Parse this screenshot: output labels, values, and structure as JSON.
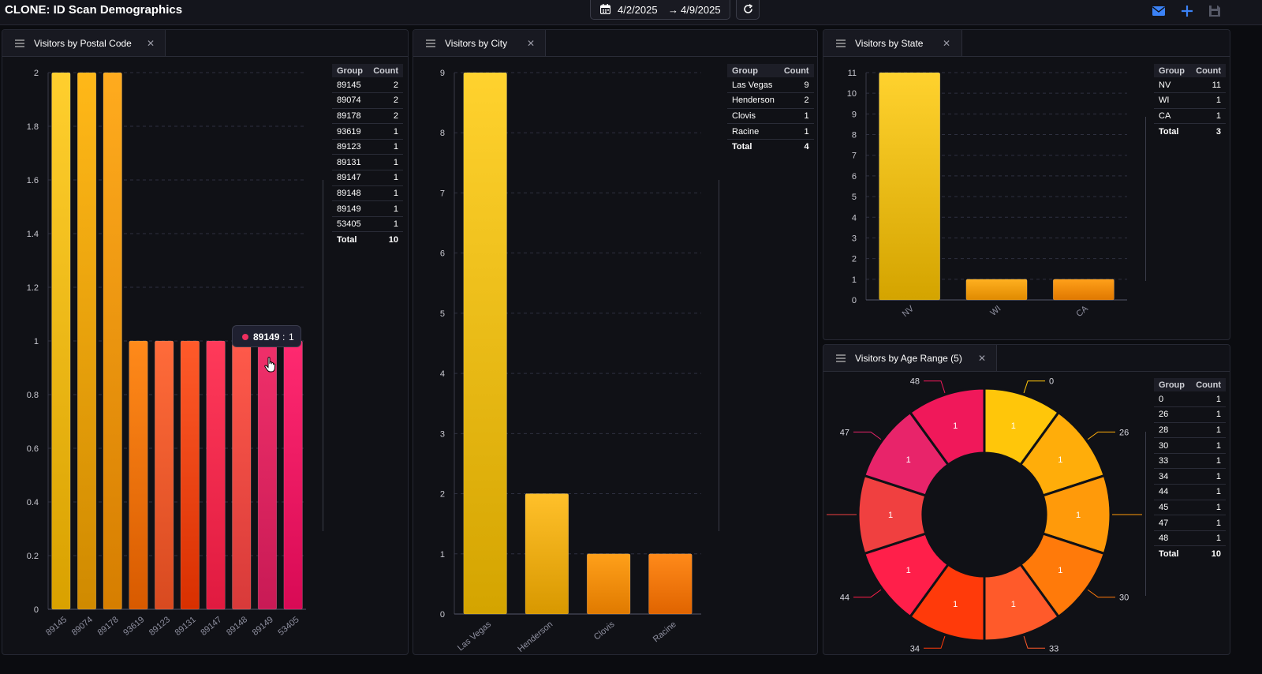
{
  "app": {
    "title": "CLONE: ID Scan Demographics",
    "date_start": "4/2/2025",
    "date_arrow": "→",
    "date_end": "4/9/2025",
    "tool_icons": [
      "mail-icon",
      "plus-icon",
      "save-icon"
    ]
  },
  "table_headers": {
    "group": "Group",
    "count": "Count"
  },
  "panels": {
    "postal": {
      "title": "Visitors by Postal Code",
      "tooltip": {
        "label": "89149",
        "sep": ":",
        "value": "1"
      },
      "rows": [
        {
          "group": "89145",
          "count": "2"
        },
        {
          "group": "89074",
          "count": "2"
        },
        {
          "group": "89178",
          "count": "2"
        },
        {
          "group": "93619",
          "count": "1"
        },
        {
          "group": "89123",
          "count": "1"
        },
        {
          "group": "89131",
          "count": "1"
        },
        {
          "group": "89147",
          "count": "1"
        },
        {
          "group": "89148",
          "count": "1"
        },
        {
          "group": "89149",
          "count": "1"
        },
        {
          "group": "53405",
          "count": "1"
        }
      ],
      "total": {
        "group": "Total",
        "count": "10"
      }
    },
    "city": {
      "title": "Visitors by City",
      "rows": [
        {
          "group": "Las Vegas",
          "count": "9"
        },
        {
          "group": "Henderson",
          "count": "2"
        },
        {
          "group": "Clovis",
          "count": "1"
        },
        {
          "group": "Racine",
          "count": "1"
        }
      ],
      "total": {
        "group": "Total",
        "count": "4"
      }
    },
    "state": {
      "title": "Visitors by State",
      "rows": [
        {
          "group": "NV",
          "count": "11"
        },
        {
          "group": "WI",
          "count": "1"
        },
        {
          "group": "CA",
          "count": "1"
        }
      ],
      "total": {
        "group": "Total",
        "count": "3"
      }
    },
    "age": {
      "title": "Visitors by Age Range (5)",
      "rows": [
        {
          "group": "0",
          "count": "1"
        },
        {
          "group": "26",
          "count": "1"
        },
        {
          "group": "28",
          "count": "1"
        },
        {
          "group": "30",
          "count": "1"
        },
        {
          "group": "33",
          "count": "1"
        },
        {
          "group": "34",
          "count": "1"
        },
        {
          "group": "44",
          "count": "1"
        },
        {
          "group": "45",
          "count": "1"
        },
        {
          "group": "47",
          "count": "1"
        },
        {
          "group": "48",
          "count": "1"
        }
      ],
      "total": {
        "group": "Total",
        "count": "10"
      }
    }
  },
  "chart_data": [
    {
      "id": "postal",
      "type": "bar",
      "categories": [
        "89145",
        "89074",
        "89178",
        "93619",
        "89123",
        "89131",
        "89147",
        "89148",
        "89149",
        "53405"
      ],
      "values": [
        2,
        2,
        2,
        1,
        1,
        1,
        1,
        1,
        1,
        1
      ],
      "yticks": [
        "0",
        "0.2",
        "0.4",
        "0.6",
        "0.8",
        "1",
        "1.2",
        "1.4",
        "1.6",
        "1.8",
        "2"
      ],
      "ylim": [
        0,
        2
      ],
      "grid": true,
      "colors": [
        [
          "#ffcf2e",
          "#d9a100"
        ],
        [
          "#ffb818",
          "#d08a00"
        ],
        [
          "#ffab1e",
          "#d67e00"
        ],
        [
          "#ff8a1a",
          "#d85a00"
        ],
        [
          "#ff6b3a",
          "#d84a20"
        ],
        [
          "#ff5a2a",
          "#d83000"
        ],
        [
          "#ff3a5a",
          "#e01a40"
        ],
        [
          "#ff5a4a",
          "#d83a3a"
        ],
        [
          "#f0306a",
          "#c81a55"
        ],
        [
          "#ff2a70",
          "#d80a55"
        ]
      ]
    },
    {
      "id": "city",
      "type": "bar",
      "categories": [
        "Las Vegas",
        "Henderson",
        "Clovis",
        "Racine"
      ],
      "values": [
        9,
        2,
        1,
        1
      ],
      "yticks": [
        "0",
        "1",
        "2",
        "3",
        "4",
        "5",
        "6",
        "7",
        "8",
        "9"
      ],
      "ylim": [
        0,
        9
      ],
      "grid": true,
      "colors": [
        [
          "#ffd22e",
          "#d4a400"
        ],
        [
          "#ffc02a",
          "#d89800"
        ],
        [
          "#ffa01a",
          "#e07a00"
        ],
        [
          "#ff8a1a",
          "#e06400"
        ]
      ]
    },
    {
      "id": "state",
      "type": "bar",
      "categories": [
        "NV",
        "WI",
        "CA"
      ],
      "values": [
        11,
        1,
        1
      ],
      "yticks": [
        "0",
        "1",
        "2",
        "3",
        "4",
        "5",
        "6",
        "7",
        "8",
        "9",
        "10",
        "11"
      ],
      "ylim": [
        0,
        11
      ],
      "grid": true,
      "colors": [
        [
          "#ffd22e",
          "#d4a400"
        ],
        [
          "#ffb020",
          "#e08a00"
        ],
        [
          "#ffa01a",
          "#e07800"
        ]
      ]
    },
    {
      "id": "age",
      "type": "pie",
      "categories": [
        "0",
        "26",
        "28",
        "30",
        "33",
        "34",
        "44",
        "45",
        "47",
        "48"
      ],
      "values": [
        1,
        1,
        1,
        1,
        1,
        1,
        1,
        1,
        1,
        1
      ],
      "outer_labels": [
        "0",
        "26",
        "",
        "30",
        "33",
        "34",
        "44",
        "",
        "47",
        "48"
      ],
      "colors": [
        "#ffc60a",
        "#ffad0a",
        "#ff9a0a",
        "#ff7a0a",
        "#ff5a2a",
        "#ff3a0a",
        "#ff1f4a",
        "#f04040",
        "#e8246a",
        "#f0185a"
      ]
    }
  ]
}
